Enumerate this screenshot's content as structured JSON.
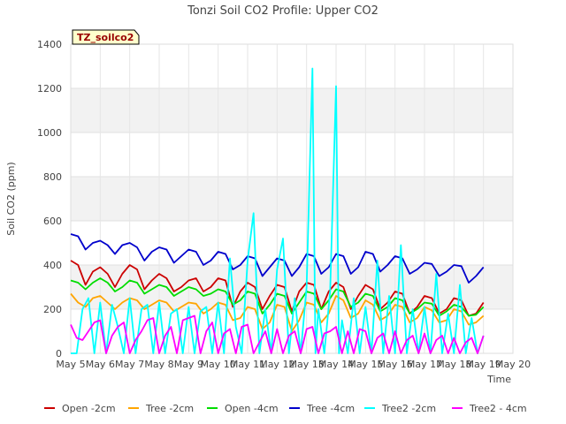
{
  "chart_data": {
    "type": "line",
    "title": "Tonzi Soil CO2 Profile: Upper CO2",
    "xlabel": "Time",
    "ylabel": "Soil CO2 (ppm)",
    "site_label": "TZ_soilco2",
    "ylim": [
      0,
      1400
    ],
    "xlim": [
      5,
      20
    ],
    "y_ticks": [
      0,
      200,
      400,
      600,
      800,
      1000,
      1200,
      1400
    ],
    "x_ticks": [
      5,
      6,
      7,
      8,
      9,
      10,
      11,
      12,
      13,
      14,
      15,
      16,
      17,
      18,
      19,
      20
    ],
    "x_tick_labels": [
      "May 5",
      "May 6",
      "May 7",
      "May 8",
      "May 9",
      "May 10",
      "May 11",
      "May 12",
      "May 13",
      "May 14",
      "May 15",
      "May 16",
      "May 17",
      "May 18",
      "May 19",
      "May 20"
    ],
    "grid": true,
    "legend_position": "bottom",
    "series": [
      {
        "name": "Open -2cm",
        "color": "#cc0000",
        "x": [
          5.0,
          5.25,
          5.5,
          5.75,
          6.0,
          6.25,
          6.5,
          6.75,
          7.0,
          7.25,
          7.5,
          7.75,
          8.0,
          8.25,
          8.5,
          8.75,
          9.0,
          9.25,
          9.5,
          9.75,
          10.0,
          10.25,
          10.5,
          10.75,
          11.0,
          11.25,
          11.5,
          11.75,
          12.0,
          12.25,
          12.5,
          12.75,
          13.0,
          13.25,
          13.5,
          13.75,
          14.0,
          14.25,
          14.5,
          14.75,
          15.0,
          15.25,
          15.5,
          15.75,
          16.0,
          16.25,
          16.5,
          16.75,
          17.0,
          17.25,
          17.5,
          17.75,
          18.0,
          18.25,
          18.5,
          18.75,
          19.0
        ],
        "values": [
          420,
          400,
          310,
          370,
          390,
          360,
          300,
          360,
          400,
          380,
          290,
          330,
          360,
          340,
          280,
          300,
          330,
          340,
          280,
          300,
          340,
          330,
          210,
          280,
          320,
          300,
          200,
          260,
          310,
          300,
          190,
          280,
          320,
          310,
          200,
          280,
          320,
          300,
          200,
          260,
          310,
          290,
          200,
          230,
          280,
          270,
          180,
          210,
          260,
          250,
          180,
          200,
          250,
          240,
          170,
          180,
          230
        ]
      },
      {
        "name": "Tree -2cm",
        "color": "#ffa500",
        "x": [
          5.0,
          5.25,
          5.5,
          5.75,
          6.0,
          6.25,
          6.5,
          6.75,
          7.0,
          7.25,
          7.5,
          7.75,
          8.0,
          8.25,
          8.5,
          8.75,
          9.0,
          9.25,
          9.5,
          9.75,
          10.0,
          10.25,
          10.5,
          10.75,
          11.0,
          11.25,
          11.5,
          11.75,
          12.0,
          12.25,
          12.5,
          12.75,
          13.0,
          13.25,
          13.5,
          13.75,
          14.0,
          14.25,
          14.5,
          14.75,
          15.0,
          15.25,
          15.5,
          15.75,
          16.0,
          16.25,
          16.5,
          16.75,
          17.0,
          17.25,
          17.5,
          17.75,
          18.0,
          18.25,
          18.5,
          18.75,
          19.0
        ],
        "values": [
          270,
          230,
          210,
          250,
          260,
          230,
          200,
          230,
          250,
          240,
          200,
          220,
          240,
          230,
          190,
          210,
          230,
          225,
          180,
          200,
          230,
          220,
          150,
          160,
          210,
          200,
          110,
          140,
          220,
          210,
          100,
          150,
          230,
          220,
          140,
          180,
          260,
          240,
          160,
          180,
          240,
          220,
          150,
          170,
          220,
          210,
          140,
          160,
          210,
          195,
          140,
          150,
          200,
          190,
          130,
          140,
          170
        ]
      },
      {
        "name": "Open -4cm",
        "color": "#00dd00",
        "x": [
          5.0,
          5.25,
          5.5,
          5.75,
          6.0,
          6.25,
          6.5,
          6.75,
          7.0,
          7.25,
          7.5,
          7.75,
          8.0,
          8.25,
          8.5,
          8.75,
          9.0,
          9.25,
          9.5,
          9.75,
          10.0,
          10.25,
          10.5,
          10.75,
          11.0,
          11.25,
          11.5,
          11.75,
          12.0,
          12.25,
          12.5,
          12.75,
          13.0,
          13.25,
          13.5,
          13.75,
          14.0,
          14.25,
          14.5,
          14.75,
          15.0,
          15.25,
          15.5,
          15.75,
          16.0,
          16.25,
          16.5,
          16.75,
          17.0,
          17.25,
          17.5,
          17.75,
          18.0,
          18.25,
          18.5,
          18.75,
          19.0
        ],
        "values": [
          330,
          320,
          290,
          320,
          340,
          320,
          280,
          300,
          330,
          320,
          270,
          290,
          310,
          300,
          260,
          280,
          300,
          290,
          260,
          270,
          290,
          280,
          220,
          240,
          280,
          270,
          180,
          220,
          270,
          260,
          180,
          230,
          280,
          270,
          200,
          240,
          290,
          280,
          210,
          230,
          270,
          260,
          190,
          210,
          250,
          240,
          180,
          200,
          230,
          225,
          170,
          190,
          220,
          210,
          170,
          175,
          210
        ]
      },
      {
        "name": "Tree -4cm",
        "color": "#0000cc",
        "x": [
          5.0,
          5.25,
          5.5,
          5.75,
          6.0,
          6.25,
          6.5,
          6.75,
          7.0,
          7.25,
          7.5,
          7.75,
          8.0,
          8.25,
          8.5,
          8.75,
          9.0,
          9.25,
          9.5,
          9.75,
          10.0,
          10.25,
          10.5,
          10.75,
          11.0,
          11.25,
          11.5,
          11.75,
          12.0,
          12.25,
          12.5,
          12.75,
          13.0,
          13.25,
          13.5,
          13.75,
          14.0,
          14.25,
          14.5,
          14.75,
          15.0,
          15.25,
          15.5,
          15.75,
          16.0,
          16.25,
          16.5,
          16.75,
          17.0,
          17.25,
          17.5,
          17.75,
          18.0,
          18.25,
          18.5,
          18.75,
          19.0
        ],
        "values": [
          540,
          530,
          470,
          500,
          510,
          490,
          450,
          490,
          500,
          480,
          420,
          460,
          480,
          470,
          410,
          440,
          470,
          460,
          400,
          420,
          460,
          450,
          380,
          400,
          440,
          430,
          350,
          390,
          430,
          420,
          350,
          390,
          450,
          440,
          360,
          390,
          450,
          440,
          360,
          390,
          460,
          450,
          370,
          400,
          440,
          430,
          360,
          380,
          410,
          405,
          350,
          370,
          400,
          395,
          320,
          350,
          390
        ]
      },
      {
        "name": "Tree2 -2cm",
        "color": "#00ffff",
        "x": [
          5.0,
          5.2,
          5.4,
          5.6,
          5.8,
          6.0,
          6.2,
          6.4,
          6.6,
          6.8,
          7.0,
          7.2,
          7.4,
          7.6,
          7.8,
          8.0,
          8.2,
          8.4,
          8.6,
          8.8,
          9.0,
          9.2,
          9.4,
          9.6,
          9.8,
          10.0,
          10.2,
          10.4,
          10.6,
          10.8,
          11.0,
          11.2,
          11.4,
          11.6,
          11.8,
          12.0,
          12.2,
          12.4,
          12.6,
          12.8,
          13.0,
          13.2,
          13.3,
          13.4,
          13.6,
          13.8,
          14.0,
          14.1,
          14.2,
          14.4,
          14.6,
          14.8,
          15.0,
          15.2,
          15.4,
          15.6,
          15.8,
          16.0,
          16.2,
          16.4,
          16.6,
          16.8,
          17.0,
          17.2,
          17.4,
          17.6,
          17.8,
          18.0,
          18.2,
          18.4,
          18.6,
          18.8,
          19.0
        ],
        "values": [
          0,
          0,
          200,
          250,
          0,
          230,
          0,
          220,
          120,
          0,
          250,
          0,
          200,
          220,
          0,
          230,
          0,
          180,
          200,
          0,
          210,
          0,
          190,
          210,
          0,
          230,
          0,
          430,
          120,
          0,
          420,
          635,
          0,
          200,
          0,
          380,
          520,
          0,
          250,
          0,
          300,
          1290,
          0,
          200,
          0,
          280,
          1210,
          0,
          150,
          0,
          250,
          0,
          210,
          0,
          420,
          0,
          260,
          0,
          490,
          0,
          200,
          0,
          210,
          0,
          360,
          0,
          180,
          0,
          310,
          0,
          160,
          0,
          80
        ]
      },
      {
        "name": "Tree2 - 4cm",
        "color": "#ff00ff",
        "x": [
          5.0,
          5.2,
          5.4,
          5.6,
          5.8,
          6.0,
          6.2,
          6.4,
          6.6,
          6.8,
          7.0,
          7.2,
          7.4,
          7.6,
          7.8,
          8.0,
          8.2,
          8.4,
          8.6,
          8.8,
          9.0,
          9.2,
          9.4,
          9.6,
          9.8,
          10.0,
          10.2,
          10.4,
          10.6,
          10.8,
          11.0,
          11.2,
          11.4,
          11.6,
          11.8,
          12.0,
          12.2,
          12.4,
          12.6,
          12.8,
          13.0,
          13.2,
          13.4,
          13.6,
          13.8,
          14.0,
          14.2,
          14.4,
          14.6,
          14.8,
          15.0,
          15.2,
          15.4,
          15.6,
          15.8,
          16.0,
          16.2,
          16.4,
          16.6,
          16.8,
          17.0,
          17.2,
          17.4,
          17.6,
          17.8,
          18.0,
          18.2,
          18.4,
          18.6,
          18.8,
          19.0
        ],
        "values": [
          130,
          70,
          60,
          100,
          140,
          150,
          0,
          80,
          120,
          140,
          0,
          60,
          100,
          150,
          160,
          0,
          80,
          120,
          0,
          150,
          160,
          170,
          0,
          100,
          140,
          0,
          90,
          110,
          0,
          120,
          130,
          0,
          50,
          100,
          0,
          110,
          0,
          80,
          100,
          0,
          110,
          120,
          0,
          90,
          100,
          120,
          0,
          100,
          0,
          110,
          100,
          0,
          70,
          90,
          0,
          100,
          0,
          60,
          80,
          0,
          90,
          0,
          60,
          80,
          0,
          70,
          0,
          50,
          70,
          0,
          80
        ]
      }
    ]
  }
}
